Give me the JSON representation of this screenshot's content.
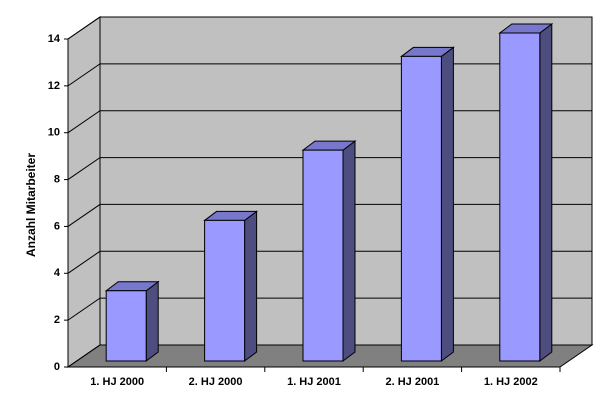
{
  "chart_data": {
    "type": "bar3d",
    "y_label": "Anzahl Mitarbeiter",
    "categories": [
      "1. HJ 2000",
      "2. HJ 2000",
      "1. HJ 2001",
      "2. HJ 2001",
      "1. HJ 2002"
    ],
    "values": [
      3,
      6,
      9,
      13,
      14
    ],
    "color": "#9999ff",
    "ylim": [
      0,
      14
    ],
    "yticks": [
      0,
      2,
      4,
      6,
      8,
      10,
      12,
      14
    ],
    "grid": true
  }
}
